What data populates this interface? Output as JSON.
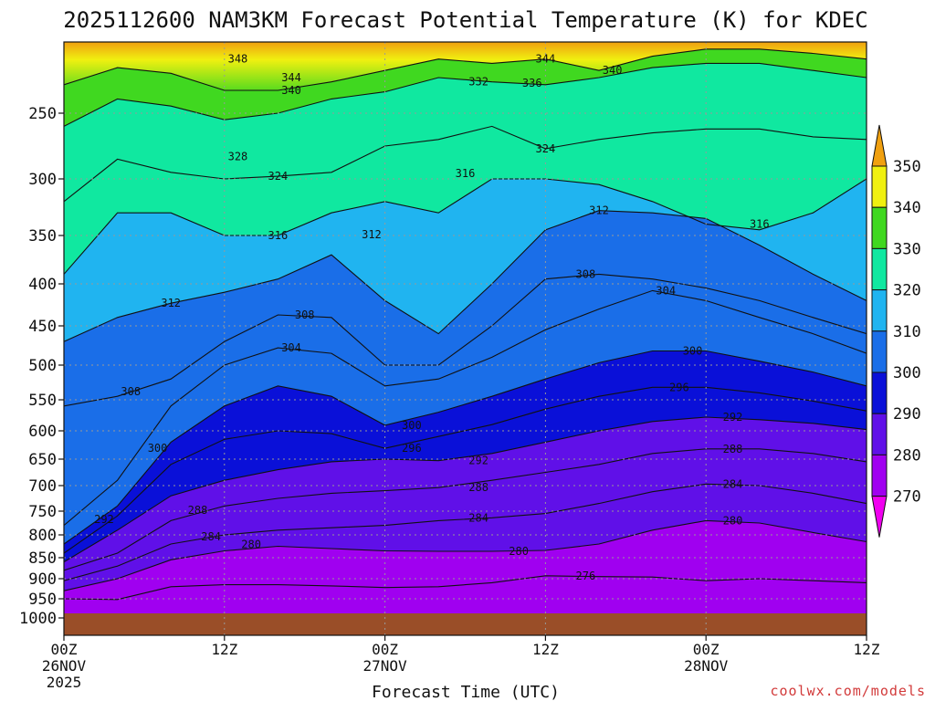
{
  "chart_data": {
    "type": "contour",
    "title": "2025112600 NAM3KM Forecast Potential Temperature (K) for KDEC",
    "xlabel": "Forecast Time (UTC)",
    "ylabel": "",
    "x_ticks": [
      {
        "hour": 0,
        "line1": "00Z",
        "line2": "26NOV",
        "line3": "2025"
      },
      {
        "hour": 12,
        "line1": "12Z",
        "line2": "",
        "line3": ""
      },
      {
        "hour": 24,
        "line1": "00Z",
        "line2": "27NOV",
        "line3": ""
      },
      {
        "hour": 36,
        "line1": "12Z",
        "line2": "",
        "line3": ""
      },
      {
        "hour": 48,
        "line1": "00Z",
        "line2": "28NOV",
        "line3": ""
      },
      {
        "hour": 60,
        "line1": "12Z",
        "line2": "",
        "line3": ""
      }
    ],
    "xlim_hours": [
      0,
      60
    ],
    "y_ticks": [
      250,
      300,
      350,
      400,
      450,
      500,
      550,
      600,
      650,
      700,
      750,
      800,
      850,
      900,
      950,
      1000
    ],
    "ylim_hpa": [
      200,
      1000
    ],
    "colorbar": {
      "levels": [
        270,
        280,
        290,
        300,
        310,
        320,
        330,
        340,
        350
      ],
      "colors": [
        "#f000f0",
        "#a000f0",
        "#6010e8",
        "#0a10d8",
        "#1a6ee8",
        "#20b4f0",
        "#10e8a0",
        "#40d820",
        "#f0f010",
        "#f0a010"
      ]
    },
    "contour_labels": [
      {
        "value": 348,
        "hour": 13.0,
        "hpa": 212
      },
      {
        "value": 344,
        "hour": 17.0,
        "hpa": 225
      },
      {
        "value": 340,
        "hour": 17.0,
        "hpa": 234
      },
      {
        "value": 332,
        "hour": 31.0,
        "hpa": 228
      },
      {
        "value": 336,
        "hour": 35.0,
        "hpa": 229
      },
      {
        "value": 344,
        "hour": 36.0,
        "hpa": 212
      },
      {
        "value": 340,
        "hour": 41.0,
        "hpa": 220
      },
      {
        "value": 328,
        "hour": 13.0,
        "hpa": 283
      },
      {
        "value": 324,
        "hour": 16.0,
        "hpa": 298
      },
      {
        "value": 324,
        "hour": 36.0,
        "hpa": 277
      },
      {
        "value": 316,
        "hour": 30.0,
        "hpa": 296
      },
      {
        "value": 312,
        "hour": 40.0,
        "hpa": 328
      },
      {
        "value": 316,
        "hour": 16.0,
        "hpa": 350
      },
      {
        "value": 312,
        "hour": 23.0,
        "hpa": 349
      },
      {
        "value": 316,
        "hour": 52.0,
        "hpa": 340
      },
      {
        "value": 312,
        "hour": 8.0,
        "hpa": 423
      },
      {
        "value": 308,
        "hour": 39.0,
        "hpa": 390
      },
      {
        "value": 308,
        "hour": 18.0,
        "hpa": 437
      },
      {
        "value": 304,
        "hour": 45.0,
        "hpa": 408
      },
      {
        "value": 304,
        "hour": 17.0,
        "hpa": 478
      },
      {
        "value": 300,
        "hour": 47.0,
        "hpa": 482
      },
      {
        "value": 308,
        "hour": 5.0,
        "hpa": 538
      },
      {
        "value": 296,
        "hour": 46.0,
        "hpa": 532
      },
      {
        "value": 300,
        "hour": 26.0,
        "hpa": 591
      },
      {
        "value": 292,
        "hour": 50.0,
        "hpa": 578
      },
      {
        "value": 296,
        "hour": 26.0,
        "hpa": 631
      },
      {
        "value": 300,
        "hour": 7.0,
        "hpa": 631
      },
      {
        "value": 288,
        "hour": 50.0,
        "hpa": 632
      },
      {
        "value": 292,
        "hour": 31.0,
        "hpa": 653
      },
      {
        "value": 288,
        "hour": 31.0,
        "hpa": 704
      },
      {
        "value": 284,
        "hour": 50.0,
        "hpa": 697
      },
      {
        "value": 292,
        "hour": 3.0,
        "hpa": 767
      },
      {
        "value": 288,
        "hour": 10.0,
        "hpa": 748
      },
      {
        "value": 284,
        "hour": 31.0,
        "hpa": 764
      },
      {
        "value": 280,
        "hour": 50.0,
        "hpa": 770
      },
      {
        "value": 284,
        "hour": 11.0,
        "hpa": 804
      },
      {
        "value": 280,
        "hour": 14.0,
        "hpa": 821
      },
      {
        "value": 280,
        "hour": 34.0,
        "hpa": 836
      },
      {
        "value": 276,
        "hour": 39.0,
        "hpa": 893
      }
    ]
  },
  "footer": {
    "credit": "coolwx.com/models"
  },
  "ground": {
    "color": "#9a4e28"
  }
}
